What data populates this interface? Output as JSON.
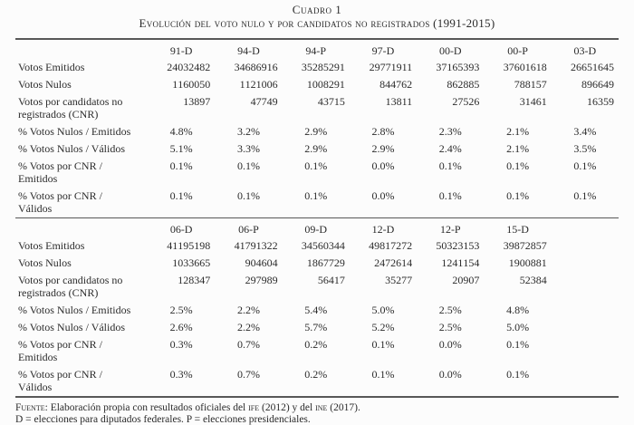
{
  "page": {
    "title": "Cuadro 1",
    "subtitle": "Evolución del voto nulo y por candidatos no registrados (1991-2015)"
  },
  "sections": [
    {
      "columns": [
        "91-D",
        "94-D",
        "94-P",
        "97-D",
        "00-D",
        "00-P",
        "03-D"
      ],
      "rows": [
        {
          "label": "Votos Emitidos",
          "values": [
            "24 032 482",
            "34 686 916",
            "35 285 291",
            "29 771 911",
            "37 165 393",
            "37 601 618",
            "26 651 645"
          ]
        },
        {
          "label": "Votos Nulos",
          "values": [
            "1 160 050",
            "1 121 006",
            "1 008 291",
            "844 762",
            "862 885",
            "788 157",
            "896 649"
          ]
        },
        {
          "label": "Votos por candidatos no\nregistrados (CNR)",
          "values": [
            "13 897",
            "47 749",
            "43 715",
            "13 811",
            "27 526",
            "31 461",
            "16 359"
          ]
        },
        {
          "label": "% Votos Nulos / Emitidos",
          "values": [
            "4.8%",
            "3.2%",
            "2.9%",
            "2.8%",
            "2.3%",
            "2.1%",
            "3.4%"
          ]
        },
        {
          "label": "% Votos Nulos / Válidos",
          "values": [
            "5.1%",
            "3.3%",
            "2.9%",
            "2.9%",
            "2.4%",
            "2.1%",
            "3.5%"
          ]
        },
        {
          "label": "% Votos por CNR /\nEmitidos",
          "values": [
            "0.1%",
            "0.1%",
            "0.1%",
            "0.0%",
            "0.1%",
            "0.1%",
            "0.1%"
          ]
        },
        {
          "label": "% Votos por CNR /\nVálidos",
          "values": [
            "0.1%",
            "0.1%",
            "0.1%",
            "0.0%",
            "0.1%",
            "0.1%",
            "0.1%"
          ]
        }
      ]
    },
    {
      "columns": [
        "06-D",
        "06-P",
        "09-D",
        "12-D",
        "12-P",
        "15-D",
        ""
      ],
      "rows": [
        {
          "label": "Votos Emitidos",
          "values": [
            "41 195 198",
            "41 791 322",
            "34 560 344",
            "49 817 272",
            "50 323 153",
            "39 872 857",
            ""
          ]
        },
        {
          "label": "Votos Nulos",
          "values": [
            "1 033 665",
            "904 604",
            "1 867 729",
            "2 472 614",
            "1 241 154",
            "1 900 881",
            ""
          ]
        },
        {
          "label": "Votos por candidatos no\nregistrados (CNR)",
          "values": [
            "128 347",
            "297 989",
            "56 417",
            "35 277",
            "20 907",
            "52 384",
            ""
          ]
        },
        {
          "label": "% Votos Nulos / Emitidos",
          "values": [
            "2.5%",
            "2.2%",
            "5.4%",
            "5.0%",
            "2.5%",
            "4.8%",
            ""
          ]
        },
        {
          "label": "% Votos Nulos / Válidos",
          "values": [
            "2.6%",
            "2.2%",
            "5.7%",
            "5.2%",
            "2.5%",
            "5.0%",
            ""
          ]
        },
        {
          "label": "% Votos por CNR /\nEmitidos",
          "values": [
            "0.3%",
            "0.7%",
            "0.2%",
            "0.1%",
            "0.0%",
            "0.1%",
            ""
          ]
        },
        {
          "label": "% Votos por CNR /\nVálidos",
          "values": [
            "0.3%",
            "0.7%",
            "0.2%",
            "0.1%",
            "0.0%",
            "0.1%",
            ""
          ]
        }
      ]
    }
  ],
  "footnotes": {
    "source_prefix": "Fuente",
    "source_text_1": ": Elaboración propia con resultados oficiales del ",
    "source_ife": "ife",
    "source_text_2": " (2012) y del ",
    "source_ine": "ine",
    "source_text_3": " (2017).",
    "legend": "D = elecciones para diputados federales. P = elecciones presidenciales."
  },
  "colors": {
    "text": "#2b2b2b",
    "rule": "#585858",
    "background": "#fcfcfc"
  }
}
